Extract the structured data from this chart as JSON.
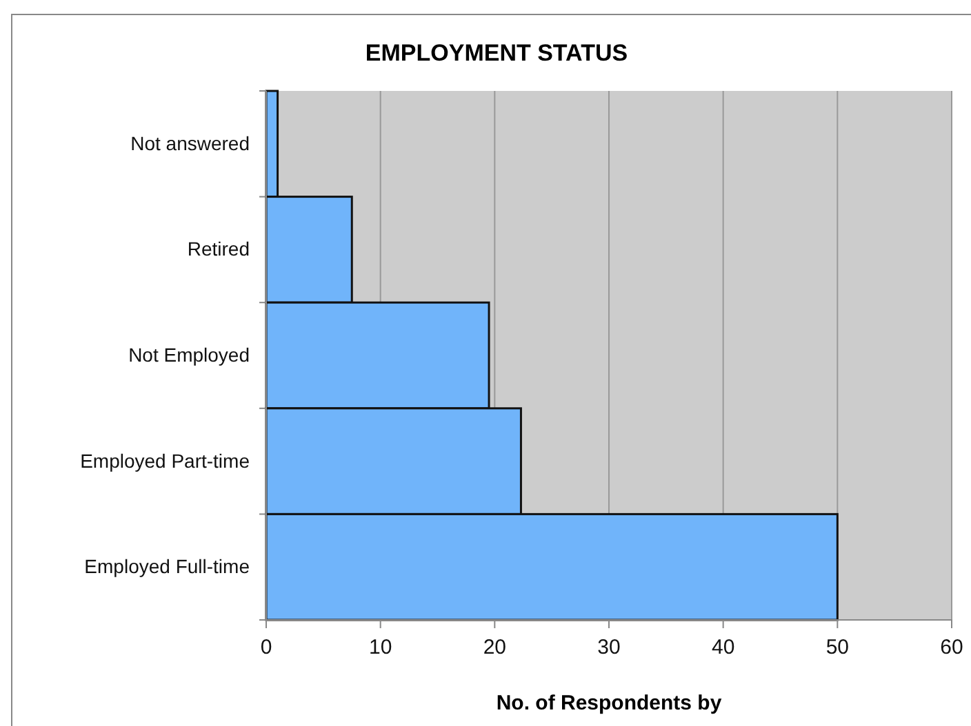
{
  "chart_data": {
    "type": "bar",
    "orientation": "horizontal",
    "title": "EMPLOYMENT STATUS",
    "xlabel": "No. of Respondents by",
    "categories": [
      "Not answered",
      "Retired",
      "Not Employed",
      "Employed Part-time",
      "Employed Full-time"
    ],
    "values": [
      1,
      7.5,
      19.5,
      22.3,
      50
    ],
    "color": "#70b4fa",
    "xlim": [
      0,
      60
    ],
    "xticks": [
      0,
      10,
      20,
      30,
      40,
      50,
      60
    ],
    "grid": "x"
  }
}
